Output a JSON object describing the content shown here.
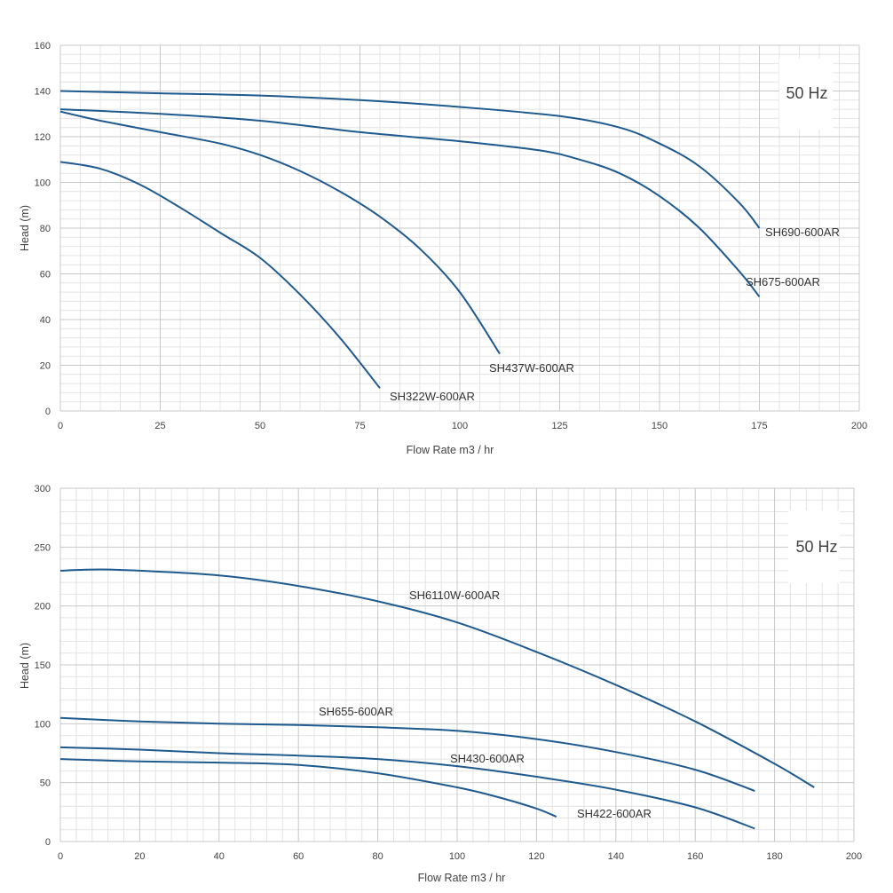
{
  "colors": {
    "curve": "#1f5a8f"
  },
  "chart_data": [
    {
      "type": "line",
      "title": "",
      "annotation": "50 Hz",
      "xlabel": "Flow Rate m3 / hr",
      "ylabel": "Head (m)",
      "xlim": [
        0,
        200
      ],
      "ylim": [
        0,
        160
      ],
      "xticks": [
        0,
        25,
        50,
        75,
        100,
        125,
        150,
        175,
        200
      ],
      "yticks": [
        0,
        20,
        40,
        60,
        80,
        100,
        120,
        140,
        160
      ],
      "xminor": 5,
      "yminor": 5,
      "grid": true,
      "series": [
        {
          "name": "SH690-600AR",
          "x": [
            0,
            25,
            50,
            75,
            100,
            125,
            140,
            150,
            160,
            170,
            175
          ],
          "y": [
            140,
            139,
            138,
            136,
            133,
            129,
            124,
            117,
            107,
            91,
            80
          ]
        },
        {
          "name": "SH675-600AR",
          "x": [
            0,
            25,
            50,
            75,
            100,
            120,
            130,
            140,
            150,
            160,
            170,
            175
          ],
          "y": [
            132,
            130,
            127,
            122,
            118,
            114,
            110,
            104,
            94,
            80,
            61,
            50
          ]
        },
        {
          "name": "SH437W-600AR",
          "x": [
            0,
            10,
            25,
            40,
            50,
            60,
            70,
            80,
            90,
            100,
            110
          ],
          "y": [
            131,
            127,
            122,
            117,
            112,
            105,
            96,
            85,
            71,
            52,
            25
          ]
        },
        {
          "name": "SH322W-600AR",
          "x": [
            0,
            10,
            20,
            30,
            40,
            50,
            60,
            70,
            80
          ],
          "y": [
            109,
            106,
            99,
            89,
            78,
            67,
            51,
            32,
            10
          ]
        }
      ]
    },
    {
      "type": "line",
      "title": "",
      "annotation": "50 Hz",
      "xlabel": "Flow Rate m3 / hr",
      "ylabel": "Head (m)",
      "xlim": [
        0,
        200
      ],
      "ylim": [
        0,
        300
      ],
      "xticks": [
        0,
        20,
        40,
        60,
        80,
        100,
        120,
        140,
        160,
        180,
        200
      ],
      "yticks": [
        0,
        50,
        100,
        150,
        200,
        250,
        300
      ],
      "xminor": 5,
      "yminor": 5,
      "grid": true,
      "series": [
        {
          "name": "SH6110W-600AR",
          "x": [
            0,
            10,
            20,
            40,
            60,
            80,
            100,
            120,
            140,
            160,
            180,
            190
          ],
          "y": [
            230,
            231,
            230,
            226,
            217,
            204,
            186,
            161,
            133,
            102,
            66,
            46
          ]
        },
        {
          "name": "SH655-600AR",
          "x": [
            0,
            20,
            40,
            60,
            80,
            100,
            120,
            140,
            160,
            175
          ],
          "y": [
            105,
            102,
            100,
            99,
            97,
            94,
            87,
            76,
            61,
            43
          ]
        },
        {
          "name": "SH430-600AR",
          "x": [
            0,
            20,
            40,
            60,
            80,
            100,
            120,
            140,
            160,
            175
          ],
          "y": [
            80,
            78,
            75,
            73,
            70,
            64,
            55,
            44,
            29,
            11
          ]
        },
        {
          "name": "SH422-600AR",
          "x": [
            0,
            20,
            40,
            60,
            80,
            100,
            110,
            120,
            125
          ],
          "y": [
            70,
            68,
            67,
            65,
            58,
            46,
            38,
            28,
            21
          ]
        }
      ]
    }
  ]
}
